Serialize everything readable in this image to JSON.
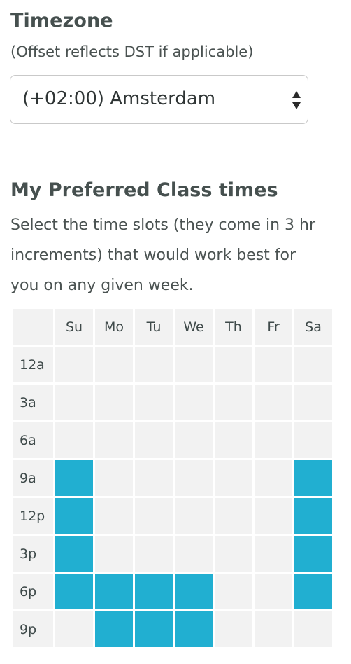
{
  "timezone": {
    "title": "Timezone",
    "subtitle": "(Offset reflects DST if applicable)",
    "selected": "(+02:00) Amsterdam",
    "arrow_icon": "select-updown-arrows-icon"
  },
  "preferred": {
    "title": "My Preferred Class times",
    "description": "Select the time slots (they come in 3 hr increments) that would work best for you on any given week."
  },
  "schedule": {
    "days": [
      "Su",
      "Mo",
      "Tu",
      "We",
      "Th",
      "Fr",
      "Sa"
    ],
    "times": [
      "12a",
      "3a",
      "6a",
      "9a",
      "12p",
      "3p",
      "6p",
      "9p"
    ],
    "selected_color": "#21afd1",
    "empty_color": "#f2f2f2",
    "selected": {
      "12a": [],
      "3a": [],
      "6a": [],
      "9a": [
        "Su",
        "Sa"
      ],
      "12p": [
        "Su",
        "Sa"
      ],
      "3p": [
        "Su",
        "Sa"
      ],
      "6p": [
        "Su",
        "Mo",
        "Tu",
        "We",
        "Sa"
      ],
      "9p": [
        "Mo",
        "Tu",
        "We"
      ]
    }
  }
}
